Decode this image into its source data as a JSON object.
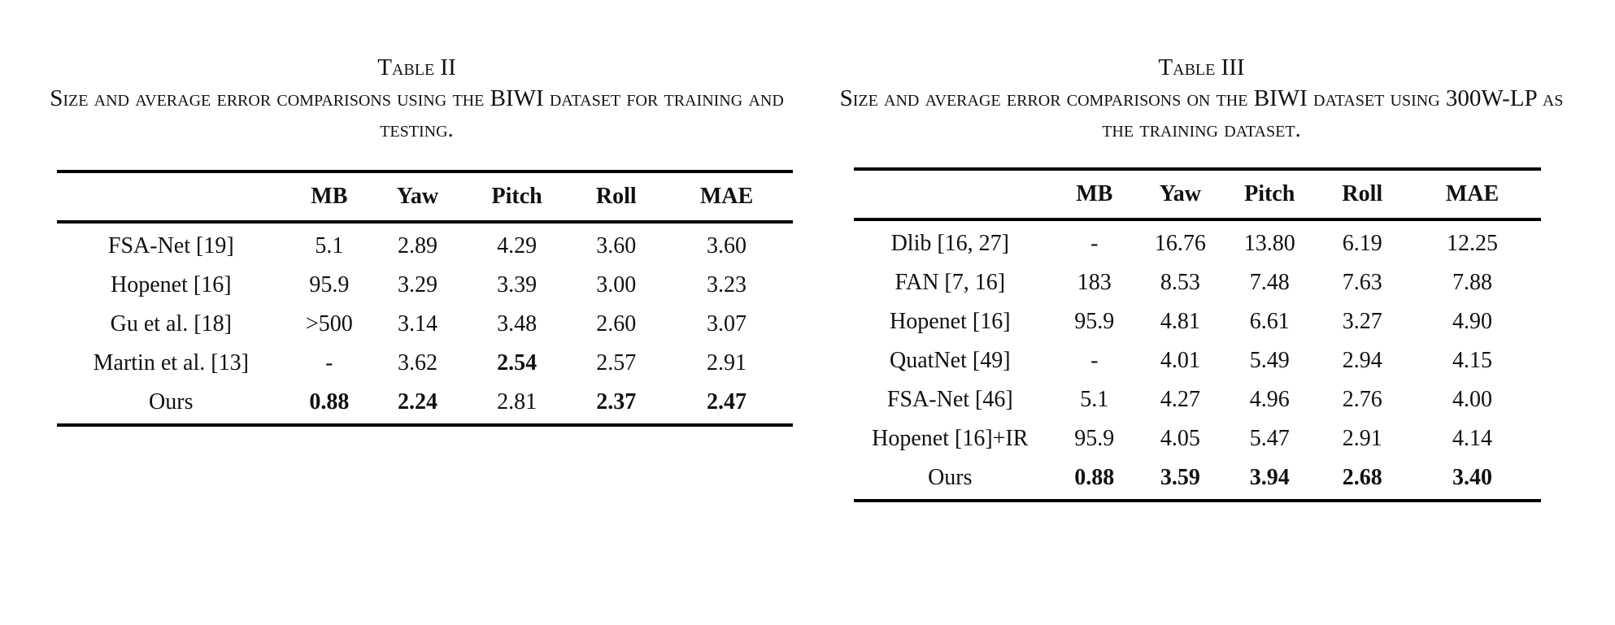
{
  "tables": [
    {
      "label": "Table II",
      "caption": "Size and average error comparisons using the BIWI dataset for training and testing.",
      "headers": [
        "",
        "MB",
        "Yaw",
        "Pitch",
        "Roll",
        "MAE"
      ],
      "rows": [
        {
          "cells": [
            "FSA-Net [19]",
            "5.1",
            "2.89",
            "4.29",
            "3.60",
            "3.60"
          ],
          "bold": []
        },
        {
          "cells": [
            "Hopenet [16]",
            "95.9",
            "3.29",
            "3.39",
            "3.00",
            "3.23"
          ],
          "bold": []
        },
        {
          "cells": [
            "Gu et al. [18]",
            ">500",
            "3.14",
            "3.48",
            "2.60",
            "3.07"
          ],
          "bold": []
        },
        {
          "cells": [
            "Martin et al. [13]",
            "-",
            "3.62",
            "2.54",
            "2.57",
            "2.91"
          ],
          "bold": [
            3
          ]
        },
        {
          "cells": [
            "Ours",
            "0.88",
            "2.24",
            "2.81",
            "2.37",
            "2.47"
          ],
          "bold": [
            1,
            2,
            4,
            5
          ]
        }
      ]
    },
    {
      "label": "Table III",
      "caption": "Size and average error comparisons on the BIWI dataset using 300W-LP as the training dataset.",
      "headers": [
        "",
        "MB",
        "Yaw",
        "Pitch",
        "Roll",
        "MAE"
      ],
      "rows": [
        {
          "cells": [
            "Dlib [16, 27]",
            "-",
            "16.76",
            "13.80",
            "6.19",
            "12.25"
          ],
          "bold": []
        },
        {
          "cells": [
            "FAN [7, 16]",
            "183",
            "8.53",
            "7.48",
            "7.63",
            "7.88"
          ],
          "bold": []
        },
        {
          "cells": [
            "Hopenet [16]",
            "95.9",
            "4.81",
            "6.61",
            "3.27",
            "4.90"
          ],
          "bold": []
        },
        {
          "cells": [
            "QuatNet [49]",
            "-",
            "4.01",
            "5.49",
            "2.94",
            "4.15"
          ],
          "bold": []
        },
        {
          "cells": [
            "FSA-Net [46]",
            "5.1",
            "4.27",
            "4.96",
            "2.76",
            "4.00"
          ],
          "bold": []
        },
        {
          "cells": [
            "Hopenet [16]+IR",
            "95.9",
            "4.05",
            "5.47",
            "2.91",
            "4.14"
          ],
          "bold": []
        },
        {
          "cells": [
            "Ours",
            "0.88",
            "3.59",
            "3.94",
            "2.68",
            "3.40"
          ],
          "bold": [
            1,
            2,
            3,
            4,
            5
          ]
        }
      ]
    }
  ]
}
